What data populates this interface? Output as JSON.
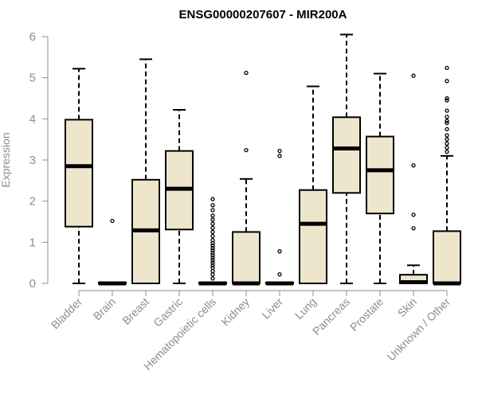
{
  "chart_data": {
    "type": "boxplot",
    "title": "ENSG00000207607 - MIR200A",
    "xlabel": "",
    "ylabel": "Expression",
    "ylim": [
      0,
      6
    ],
    "yticks": [
      0,
      1,
      2,
      3,
      4,
      5,
      6
    ],
    "grid": false,
    "colors": {
      "box_fill": "#ede6cd",
      "stroke": "#000000",
      "axis": "#8c8c8c",
      "tick_label": "#8c8c8c",
      "title": "#000000"
    },
    "categories": [
      "Bladder",
      "Brain",
      "Breast",
      "Gastric",
      "Hematopoietic cells",
      "Kidney",
      "Liver",
      "Lung",
      "Pancreas",
      "Prostate",
      "Skin",
      "Unknown / Other"
    ],
    "boxes": [
      {
        "category": "Bladder",
        "whisker_low": 0,
        "q1": 1.38,
        "median": 2.85,
        "q3": 3.98,
        "whisker_high": 5.22,
        "outliers": []
      },
      {
        "category": "Brain",
        "whisker_low": 0,
        "q1": 0,
        "median": 0,
        "q3": 0.02,
        "whisker_high": 0.02,
        "outliers": [
          1.52
        ]
      },
      {
        "category": "Breast",
        "whisker_low": 0,
        "q1": 0,
        "median": 1.29,
        "q3": 2.52,
        "whisker_high": 5.45,
        "outliers": []
      },
      {
        "category": "Gastric",
        "whisker_low": 0,
        "q1": 1.31,
        "median": 2.3,
        "q3": 3.22,
        "whisker_high": 4.22,
        "outliers": []
      },
      {
        "category": "Hematopoietic cells",
        "whisker_low": 0,
        "q1": 0,
        "median": 0,
        "q3": 0.02,
        "whisker_high": 0.02,
        "outliers": [
          2.05,
          1.9,
          1.78,
          1.65,
          1.55,
          1.45,
          1.35,
          1.25,
          1.15,
          1.05,
          0.98,
          0.92,
          0.86,
          0.8,
          0.74,
          0.68,
          0.62,
          0.56,
          0.5,
          0.44,
          0.38,
          0.3,
          0.22,
          0.12
        ]
      },
      {
        "category": "Kidney",
        "whisker_low": 0,
        "q1": 0,
        "median": 0,
        "q3": 1.25,
        "whisker_high": 2.54,
        "outliers": [
          5.12,
          3.24
        ]
      },
      {
        "category": "Liver",
        "whisker_low": 0,
        "q1": 0,
        "median": 0,
        "q3": 0.02,
        "whisker_high": 0.02,
        "outliers": [
          3.22,
          3.1,
          0.78,
          0.22
        ]
      },
      {
        "category": "Lung",
        "whisker_low": 0,
        "q1": 0,
        "median": 1.45,
        "q3": 2.27,
        "whisker_high": 4.79,
        "outliers": []
      },
      {
        "category": "Pancreas",
        "whisker_low": 0,
        "q1": 2.2,
        "median": 3.28,
        "q3": 4.04,
        "whisker_high": 6.05,
        "outliers": []
      },
      {
        "category": "Prostate",
        "whisker_low": 0,
        "q1": 1.7,
        "median": 2.75,
        "q3": 3.57,
        "whisker_high": 5.1,
        "outliers": []
      },
      {
        "category": "Skin",
        "whisker_low": 0,
        "q1": 0,
        "median": 0.03,
        "q3": 0.21,
        "whisker_high": 0.44,
        "outliers": [
          5.05,
          2.87,
          1.67,
          1.34
        ]
      },
      {
        "category": "Unknown / Other",
        "whisker_low": 0,
        "q1": 0,
        "median": 0,
        "q3": 1.27,
        "whisker_high": 3.1,
        "outliers": [
          5.24,
          4.92,
          4.5,
          4.45,
          4.2,
          4.05,
          3.95,
          3.9,
          3.75,
          3.6,
          3.5,
          3.4,
          3.3,
          3.2
        ]
      }
    ]
  }
}
